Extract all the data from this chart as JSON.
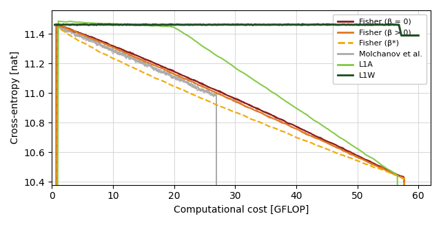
{
  "xlabel": "Computational cost [GFLOP]",
  "ylabel": "Cross-entropy [nat]",
  "xlim": [
    0,
    62
  ],
  "ylim": [
    10.38,
    11.56
  ],
  "yticks": [
    10.4,
    10.6,
    10.8,
    11.0,
    11.2,
    11.4
  ],
  "xticks": [
    0,
    10,
    20,
    30,
    40,
    50,
    60
  ],
  "colors": {
    "fisher_b0": "#8b1a1a",
    "fisher_bpos": "#e07820",
    "fisher_bstar": "#f0a800",
    "molchanov": "#aaaaaa",
    "l1a": "#80c840",
    "l1w": "#1a4a20"
  },
  "legend_labels": [
    "Fisher (β = 0)",
    "Fisher (β > 0)",
    "Fisher (β*)",
    "Molchanov et al.",
    "L1A",
    "L1W"
  ],
  "figsize": [
    6.4,
    3.27
  ],
  "dpi": 100
}
